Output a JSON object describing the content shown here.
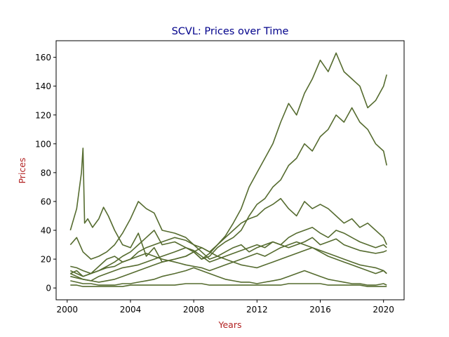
{
  "chart_data": {
    "type": "line",
    "title": "SCVL: Prices over Time",
    "xlabel": "Years",
    "ylabel": "Prices",
    "xlim": [
      1999.3,
      2021.3
    ],
    "ylim": [
      -8.2,
      171.5
    ],
    "x_ticks": [
      2000,
      2004,
      2008,
      2012,
      2016,
      2020
    ],
    "x_tick_labels": [
      "2000",
      "2004",
      "2008",
      "2012",
      "2016",
      "2020"
    ],
    "y_ticks": [
      0,
      20,
      40,
      60,
      80,
      100,
      120,
      140,
      160
    ],
    "y_tick_labels": [
      "0",
      "20",
      "40",
      "60",
      "80",
      "100",
      "120",
      "140",
      "160"
    ],
    "grid": false,
    "legend": "none",
    "colors": {
      "line": "#556b2f",
      "title": "#00008b",
      "axis_label": "#b22222",
      "axes": "#000000"
    },
    "series": [
      {
        "x": [
          2000.2,
          2000.6,
          2000.9,
          2001.0,
          2001.1,
          2001.3,
          2001.6,
          2002.0,
          2002.3,
          2002.6,
          2003.0,
          2003.5,
          2004.0,
          2004.5,
          2005.0,
          2005.5,
          2006.0,
          2006.8,
          2007.5,
          2008.0,
          2008.5,
          2009.0,
          2009.5,
          2010.0,
          2010.5,
          2011.0,
          2011.5,
          2012.0,
          2012.5,
          2013.0,
          2013.5,
          2014.0,
          2014.5,
          2015.0,
          2015.5,
          2016.0,
          2016.5,
          2017.0,
          2017.5,
          2018.0,
          2018.5,
          2019.0,
          2019.5,
          2020.0,
          2020.2
        ],
        "y": [
          40,
          55,
          80,
          97,
          45,
          48,
          42,
          48,
          56,
          50,
          40,
          30,
          28,
          38,
          22,
          28,
          18,
          20,
          22,
          25,
          20,
          24,
          30,
          36,
          45,
          55,
          70,
          80,
          90,
          100,
          115,
          128,
          120,
          135,
          145,
          158,
          150,
          163,
          150,
          145,
          140,
          125,
          130,
          140,
          148
        ]
      },
      {
        "x": [
          2000.2,
          2000.6,
          2001.0,
          2001.5,
          2002.0,
          2002.5,
          2003.0,
          2003.5,
          2004.0,
          2004.5,
          2005.0,
          2005.5,
          2006.0,
          2006.8,
          2007.5,
          2008.0,
          2008.5,
          2009.0,
          2009.5,
          2010.0,
          2010.5,
          2011.0,
          2011.5,
          2012.0,
          2012.5,
          2013.0,
          2013.5,
          2014.0,
          2014.5,
          2015.0,
          2015.5,
          2016.0,
          2016.5,
          2017.0,
          2017.5,
          2018.0,
          2018.5,
          2019.0,
          2019.5,
          2020.0,
          2020.2
        ],
        "y": [
          10,
          12,
          8,
          10,
          12,
          15,
          18,
          22,
          25,
          30,
          35,
          40,
          30,
          32,
          28,
          25,
          20,
          22,
          28,
          32,
          35,
          40,
          50,
          58,
          62,
          70,
          75,
          85,
          90,
          100,
          95,
          105,
          110,
          120,
          115,
          125,
          115,
          110,
          100,
          95,
          85
        ]
      },
      {
        "x": [
          2000.2,
          2000.6,
          2001.0,
          2001.5,
          2002.0,
          2002.5,
          2003.0,
          2003.5,
          2004.0,
          2004.5,
          2005.0,
          2005.5,
          2006.0,
          2006.8,
          2007.5,
          2008.0,
          2008.5,
          2009.0,
          2009.5,
          2010.0,
          2010.5,
          2011.0,
          2011.5,
          2012.0,
          2012.5,
          2013.0,
          2013.5,
          2014.0,
          2014.5,
          2015.0,
          2015.5,
          2016.0,
          2016.5,
          2017.0,
          2017.5,
          2018.0,
          2018.5,
          2019.0,
          2019.5,
          2020.0,
          2020.2
        ],
        "y": [
          30,
          35,
          25,
          20,
          22,
          25,
          30,
          38,
          48,
          60,
          55,
          52,
          40,
          38,
          35,
          30,
          28,
          25,
          30,
          35,
          40,
          45,
          48,
          50,
          55,
          58,
          62,
          55,
          50,
          60,
          55,
          58,
          55,
          50,
          45,
          48,
          42,
          45,
          40,
          35,
          30
        ]
      },
      {
        "x": [
          2000.2,
          2000.6,
          2001.0,
          2001.5,
          2002.0,
          2002.5,
          2003.0,
          2003.5,
          2004.0,
          2004.5,
          2005.0,
          2005.5,
          2006.0,
          2006.8,
          2007.5,
          2008.0,
          2008.5,
          2009.0,
          2009.5,
          2010.0,
          2010.5,
          2011.0,
          2011.5,
          2012.0,
          2012.5,
          2013.0,
          2013.5,
          2014.0,
          2014.5,
          2015.0,
          2015.5,
          2016.0,
          2016.5,
          2017.0,
          2017.5,
          2018.0,
          2018.5,
          2019.0,
          2019.5,
          2020.0,
          2020.2
        ],
        "y": [
          12,
          10,
          8,
          10,
          15,
          20,
          22,
          18,
          20,
          25,
          28,
          30,
          32,
          35,
          33,
          30,
          25,
          20,
          22,
          25,
          28,
          30,
          25,
          28,
          30,
          32,
          30,
          35,
          38,
          40,
          42,
          38,
          35,
          40,
          38,
          35,
          32,
          30,
          28,
          30,
          28
        ]
      },
      {
        "x": [
          2000.2,
          2000.6,
          2001.0,
          2001.5,
          2002.0,
          2002.5,
          2003.0,
          2003.5,
          2004.0,
          2004.5,
          2005.0,
          2005.5,
          2006.0,
          2006.8,
          2007.5,
          2008.0,
          2008.5,
          2009.0,
          2009.5,
          2010.0,
          2010.5,
          2011.0,
          2011.5,
          2012.0,
          2012.5,
          2013.0,
          2013.5,
          2014.0,
          2014.5,
          2015.0,
          2015.5,
          2016.0,
          2016.5,
          2017.0,
          2017.5,
          2018.0,
          2018.5,
          2019.0,
          2019.5,
          2020.0,
          2020.2
        ],
        "y": [
          8,
          7,
          6,
          5,
          8,
          10,
          12,
          14,
          15,
          16,
          18,
          20,
          22,
          25,
          28,
          26,
          22,
          18,
          20,
          22,
          24,
          26,
          28,
          30,
          28,
          32,
          30,
          28,
          30,
          32,
          35,
          30,
          32,
          34,
          30,
          28,
          26,
          25,
          24,
          25,
          26
        ]
      },
      {
        "x": [
          2000.2,
          2000.6,
          2001.0,
          2001.5,
          2002.0,
          2002.5,
          2003.0,
          2003.5,
          2004.0,
          2004.5,
          2005.0,
          2005.5,
          2006.0,
          2006.8,
          2007.5,
          2008.0,
          2008.5,
          2009.0,
          2009.5,
          2010.0,
          2010.5,
          2011.0,
          2011.5,
          2012.0,
          2012.5,
          2013.0,
          2013.5,
          2014.0,
          2014.5,
          2015.0,
          2015.5,
          2016.0,
          2016.5,
          2017.0,
          2017.5,
          2018.0,
          2018.5,
          2019.0,
          2019.5,
          2020.0,
          2020.2
        ],
        "y": [
          10,
          8,
          6,
          5,
          4,
          5,
          6,
          8,
          10,
          12,
          14,
          16,
          18,
          20,
          22,
          25,
          28,
          25,
          22,
          20,
          18,
          16,
          15,
          14,
          16,
          18,
          20,
          22,
          24,
          26,
          28,
          25,
          22,
          20,
          18,
          16,
          14,
          12,
          10,
          12,
          10
        ]
      },
      {
        "x": [
          2000.2,
          2000.6,
          2001.0,
          2001.5,
          2002.0,
          2002.5,
          2003.0,
          2003.5,
          2004.0,
          2004.5,
          2005.0,
          2005.5,
          2006.0,
          2006.8,
          2007.5,
          2008.0,
          2008.5,
          2009.0,
          2009.5,
          2010.0,
          2010.5,
          2011.0,
          2011.5,
          2012.0,
          2012.5,
          2013.0,
          2013.5,
          2014.0,
          2014.5,
          2015.0,
          2015.5,
          2016.0,
          2016.5,
          2017.0,
          2017.5,
          2018.0,
          2018.5,
          2019.0,
          2019.5,
          2020.0,
          2020.2
        ],
        "y": [
          5,
          4,
          3,
          3,
          2,
          2,
          2,
          3,
          3,
          4,
          5,
          6,
          8,
          10,
          12,
          14,
          12,
          10,
          8,
          6,
          5,
          4,
          4,
          3,
          4,
          5,
          6,
          8,
          10,
          12,
          10,
          8,
          6,
          5,
          4,
          3,
          3,
          2,
          2,
          3,
          2
        ]
      },
      {
        "x": [
          2000.2,
          2000.6,
          2001.0,
          2001.5,
          2002.0,
          2002.5,
          2003.0,
          2003.5,
          2004.0,
          2004.5,
          2005.0,
          2005.5,
          2006.0,
          2006.8,
          2007.5,
          2008.0,
          2008.5,
          2009.0,
          2009.5,
          2010.0,
          2010.5,
          2011.0,
          2011.5,
          2012.0,
          2012.5,
          2013.0,
          2013.5,
          2014.0,
          2014.5,
          2015.0,
          2015.5,
          2016.0,
          2016.5,
          2017.0,
          2017.5,
          2018.0,
          2018.5,
          2019.0,
          2019.5,
          2020.0,
          2020.2
        ],
        "y": [
          2,
          2,
          1,
          1,
          1,
          1,
          1,
          1,
          2,
          2,
          2,
          2,
          2,
          2,
          3,
          3,
          3,
          2,
          2,
          2,
          2,
          2,
          2,
          2,
          2,
          2,
          2,
          3,
          3,
          3,
          3,
          3,
          2,
          2,
          2,
          2,
          2,
          1,
          1,
          1,
          1
        ]
      },
      {
        "x": [
          2000.2,
          2000.6,
          2001.0,
          2001.5,
          2002.0,
          2002.5,
          2003.0,
          2003.5,
          2004.0,
          2004.5,
          2005.0,
          2005.5,
          2006.0,
          2006.8,
          2007.5,
          2008.0,
          2008.5,
          2009.0,
          2009.5,
          2010.0,
          2010.5,
          2011.0,
          2011.5,
          2012.0,
          2012.5,
          2013.0,
          2013.5,
          2014.0,
          2014.5,
          2015.0,
          2015.5,
          2016.0,
          2016.5,
          2017.0,
          2017.5,
          2018.0,
          2018.5,
          2019.0,
          2019.5,
          2020.0,
          2020.2
        ],
        "y": [
          15,
          14,
          12,
          10,
          12,
          14,
          15,
          18,
          20,
          22,
          24,
          22,
          20,
          18,
          16,
          15,
          14,
          12,
          14,
          16,
          18,
          20,
          22,
          24,
          22,
          25,
          28,
          30,
          32,
          30,
          28,
          26,
          24,
          22,
          20,
          18,
          16,
          15,
          14,
          12,
          10
        ]
      }
    ]
  }
}
